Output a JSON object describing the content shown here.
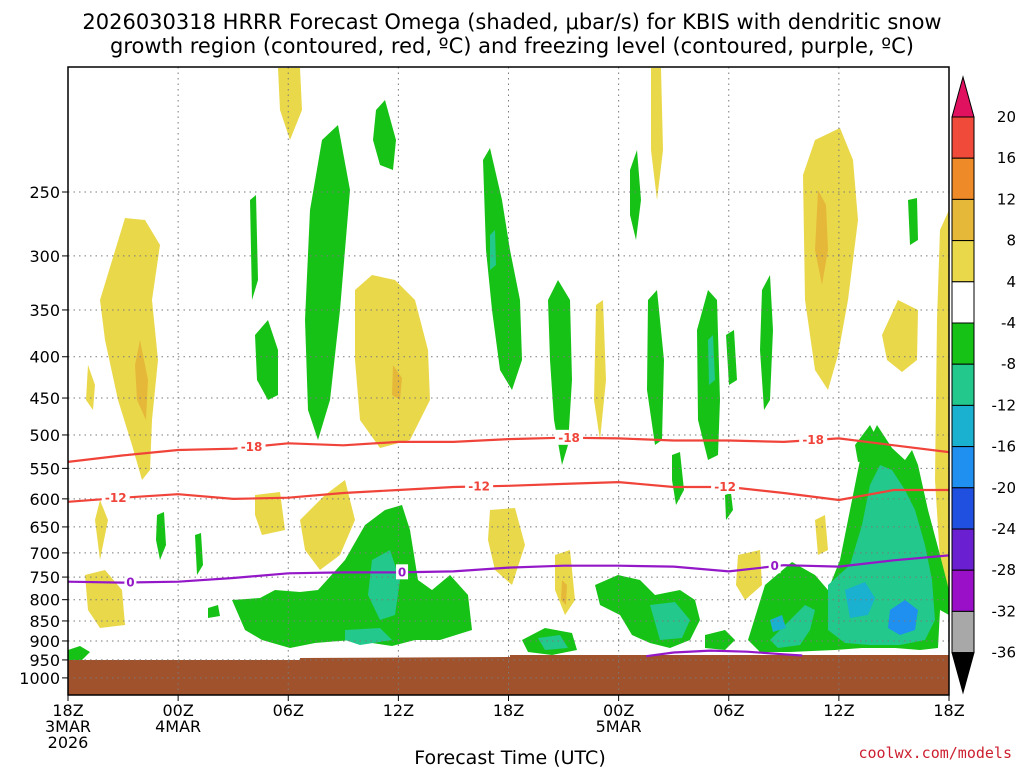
{
  "title": {
    "line1": "2026030318 HRRR Forecast Omega (shaded, μbar/s) for KBIS with dendritic snow",
    "line2": "growth region (contoured, red, ºC) and freezing level (contoured, purple, ºC)"
  },
  "credit": "coolwx.com/models",
  "chart_data": {
    "type": "area",
    "title": "2026030318 HRRR Forecast Omega (shaded, μbar/s) for KBIS with dendritic snow growth region (contoured, red, ºC) and freezing level (contoured, purple, ºC)",
    "xlabel": "Forecast Time (UTC)",
    "ylabel": "",
    "x_range_hours": [
      0,
      48
    ],
    "y_range_hPa": [
      1050,
      175
    ],
    "y_log_scale": true,
    "grid": true,
    "x_ticks": [
      {
        "h": 0,
        "lines": [
          "18Z",
          "3MAR",
          "2026"
        ]
      },
      {
        "h": 6,
        "lines": [
          "00Z",
          "4MAR"
        ]
      },
      {
        "h": 12,
        "lines": [
          "06Z"
        ]
      },
      {
        "h": 18,
        "lines": [
          "12Z"
        ]
      },
      {
        "h": 24,
        "lines": [
          "18Z"
        ]
      },
      {
        "h": 30,
        "lines": [
          "00Z",
          "5MAR"
        ]
      },
      {
        "h": 36,
        "lines": [
          "06Z"
        ]
      },
      {
        "h": 42,
        "lines": [
          "12Z"
        ]
      },
      {
        "h": 48,
        "lines": [
          "18Z"
        ]
      }
    ],
    "y_ticks": [
      250,
      300,
      350,
      400,
      450,
      500,
      550,
      600,
      650,
      700,
      750,
      800,
      850,
      900,
      950,
      1000
    ],
    "colorbar": {
      "labels": [
        20,
        16,
        12,
        8,
        4,
        -4,
        -8,
        -12,
        -16,
        -20,
        -24,
        -28,
        -32,
        -36
      ],
      "colors": [
        "#e0115f",
        "#f04a3a",
        "#ee8a28",
        "#e6b83a",
        "#e9d84a",
        "#ffffff",
        "#17c217",
        "#22c88c",
        "#1ab0d0",
        "#1f8ff0",
        "#2050e0",
        "#6a20d0",
        "#9a10c8",
        "#a8a8a8",
        "#000000"
      ]
    },
    "contours": [
      {
        "name": "-18",
        "color": "#f0443a",
        "label": "-18",
        "x": [
          0,
          3,
          6,
          9,
          12,
          15,
          18,
          21,
          24,
          27,
          30,
          33,
          36,
          39,
          42,
          45,
          48
        ],
        "y": [
          540,
          530,
          522,
          520,
          512,
          515,
          510,
          510,
          506,
          504,
          505,
          508,
          508,
          510,
          505,
          515,
          525
        ],
        "label_h": [
          10,
          27.3,
          40.6
        ]
      },
      {
        "name": "-12",
        "color": "#f0443a",
        "label": "-12",
        "x": [
          0,
          3,
          6,
          9,
          12,
          15,
          18,
          21,
          24,
          27,
          30,
          33,
          36,
          39,
          42,
          45,
          48
        ],
        "y": [
          605,
          598,
          592,
          600,
          598,
          590,
          585,
          580,
          578,
          575,
          572,
          580,
          580,
          590,
          602,
          585,
          585
        ],
        "label_h": [
          2.6,
          22.4,
          35.8
        ]
      },
      {
        "name": "0",
        "color": "#9418c8",
        "label": "0",
        "x": [
          0,
          3,
          6,
          9,
          12,
          15,
          18,
          21,
          24,
          27,
          30,
          33,
          36,
          39,
          42,
          45,
          48
        ],
        "y": [
          760,
          762,
          760,
          752,
          742,
          740,
          740,
          738,
          730,
          726,
          726,
          728,
          738,
          725,
          728,
          715,
          705
        ],
        "label_h": [
          3.4,
          18.2,
          38.5
        ]
      },
      {
        "name": "0-surface",
        "color": "#9418c8",
        "label": "",
        "x": [
          31.5,
          33,
          35,
          37,
          39,
          40
        ],
        "y": [
          940,
          930,
          925,
          928,
          935,
          938
        ],
        "label_h": []
      }
    ]
  }
}
